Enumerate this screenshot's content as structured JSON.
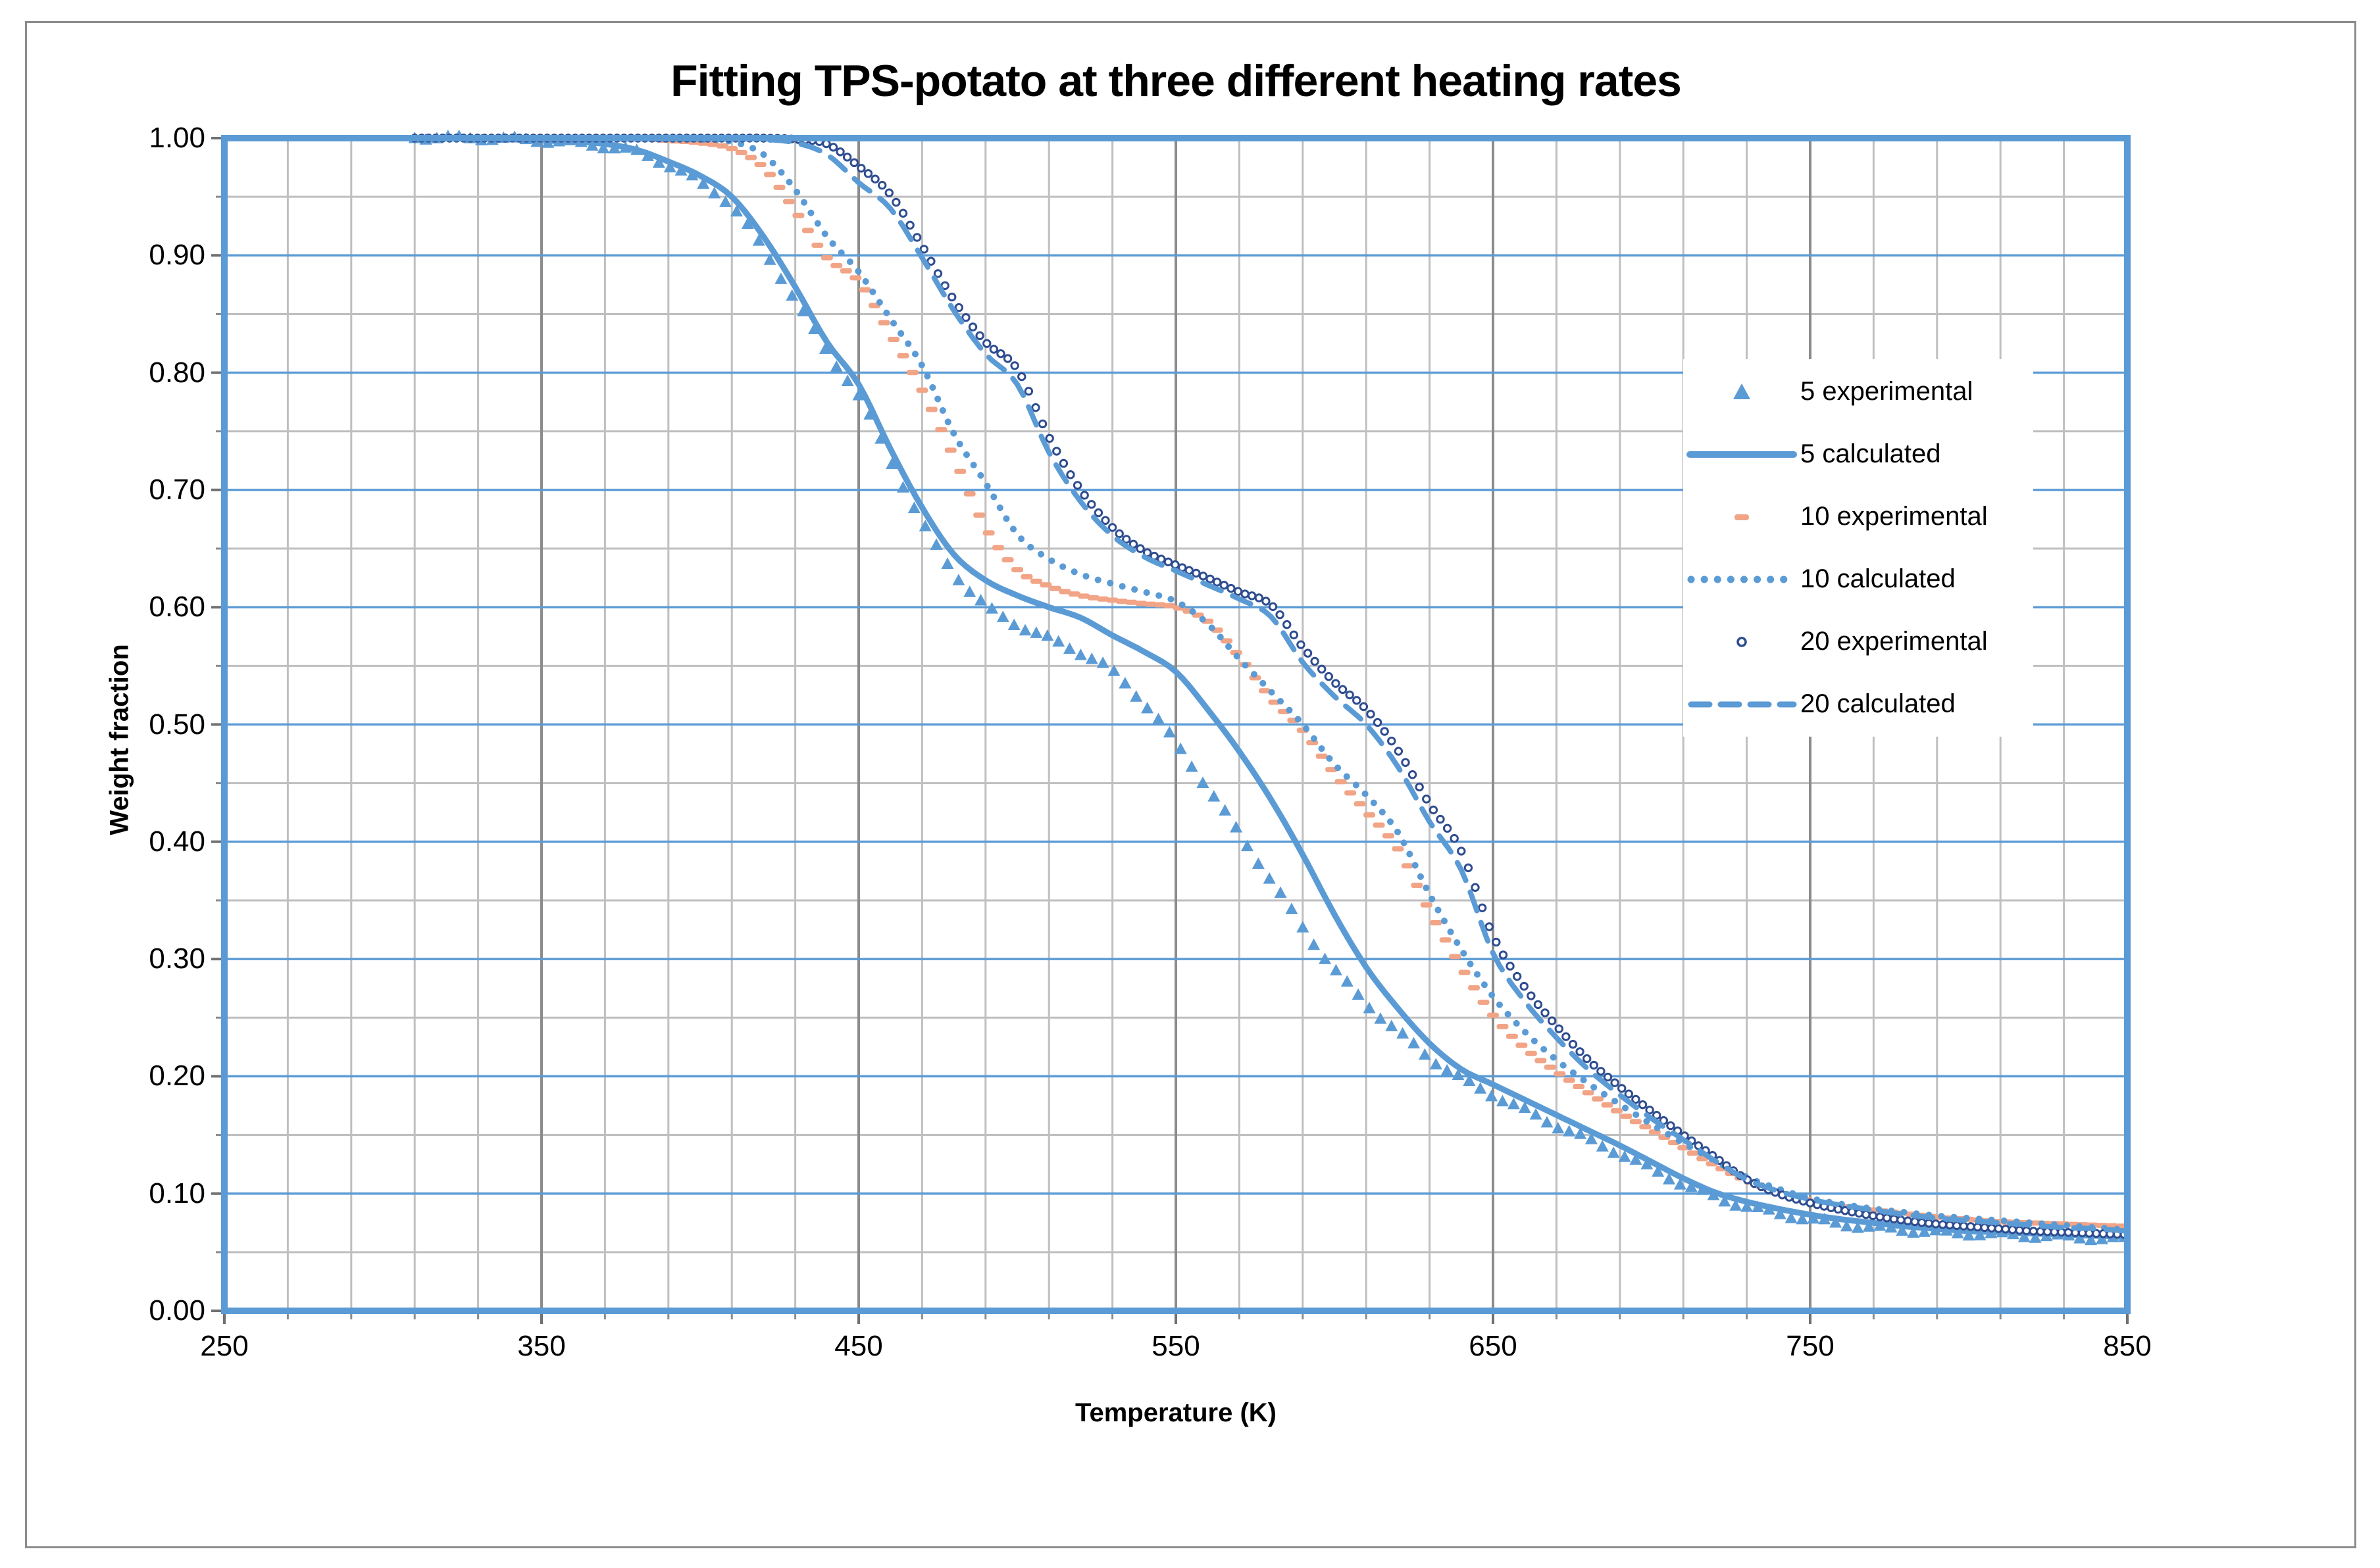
{
  "title": "Fitting TPS-potato at three different heating rates",
  "x_axis": {
    "label": "Temperature (K)",
    "min": 250,
    "max": 850,
    "major_step": 100,
    "minor_step": 20,
    "tick_labels": [
      "250",
      "350",
      "450",
      "550",
      "650",
      "750",
      "850"
    ]
  },
  "y_axis": {
    "label": "Weight fraction",
    "min": 0.0,
    "max": 1.0,
    "major_step": 0.1,
    "minor_step": 0.05,
    "tick_labels": [
      "0.00",
      "0.10",
      "0.20",
      "0.30",
      "0.40",
      "0.50",
      "0.60",
      "0.70",
      "0.80",
      "0.90",
      "1.00"
    ]
  },
  "colors": {
    "series_blue": "#5B9BD5",
    "series_salmon": "#F2A486",
    "series_navy": "#2E4C8F",
    "grid_minor": "#BFBFBF",
    "grid_major_vertical": "#8C8C8C",
    "grid_major_horizontal": "#5B9BD5",
    "plot_frame": "#5B9BD5",
    "tick_mark": "#8C8C8C",
    "figure_border": "#8C8C8C",
    "text": "#000000",
    "legend_background": "#FFFFFF"
  },
  "legend": {
    "position": "inside upper right",
    "entries": [
      {
        "label": "5 experimental",
        "marker": "triangle",
        "color_key": "series_blue"
      },
      {
        "label": "5 calculated",
        "marker": "solid-line",
        "color_key": "series_blue"
      },
      {
        "label": "10 experimental",
        "marker": "short-dash",
        "color_key": "series_salmon"
      },
      {
        "label": "10 calculated",
        "marker": "dotted-line",
        "color_key": "series_blue"
      },
      {
        "label": "20 experimental",
        "marker": "open-circle",
        "color_key": "series_navy"
      },
      {
        "label": "20 calculated",
        "marker": "dashed-line",
        "color_key": "series_blue"
      }
    ]
  },
  "chart_data": {
    "type": "line",
    "title": "Fitting TPS-potato at three different heating rates",
    "xlabel": "Temperature (K)",
    "ylabel": "Weight fraction",
    "xlim": [
      250,
      850
    ],
    "ylim": [
      0.0,
      1.0
    ],
    "grid": {
      "x_major": 100,
      "x_minor": 20,
      "y_major": 0.1,
      "y_minor": 0.05
    },
    "legend_position": "inside upper right",
    "series": [
      {
        "name": "5 experimental",
        "kind": "scatter",
        "marker": "triangle",
        "color_key": "series_blue",
        "t_start": 310,
        "t_step": 10,
        "values": [
          1.001,
          1.0,
          1.0,
          0.999,
          0.998,
          0.996,
          0.993,
          0.988,
          0.977,
          0.962,
          0.942,
          0.905,
          0.862,
          0.818,
          0.78,
          0.726,
          0.672,
          0.63,
          0.601,
          0.585,
          0.573,
          0.561,
          0.545,
          0.518,
          0.484,
          0.446,
          0.407,
          0.367,
          0.327,
          0.291,
          0.262,
          0.238,
          0.216,
          0.198,
          0.184,
          0.171,
          0.158,
          0.146,
          0.134,
          0.121,
          0.108,
          0.097,
          0.089,
          0.083,
          0.078,
          0.074,
          0.071,
          0.069,
          0.067,
          0.066,
          0.065,
          0.064,
          0.063,
          0.062,
          0.061
        ]
      },
      {
        "name": "5 calculated",
        "kind": "line",
        "line_style": "solid",
        "color_key": "series_blue",
        "t_start": 310,
        "t_step": 10,
        "values": [
          1.0,
          1.0,
          1.0,
          0.999,
          0.998,
          0.997,
          0.995,
          0.99,
          0.98,
          0.968,
          0.95,
          0.916,
          0.873,
          0.826,
          0.79,
          0.735,
          0.685,
          0.645,
          0.623,
          0.61,
          0.6,
          0.591,
          0.576,
          0.562,
          0.545,
          0.513,
          0.477,
          0.436,
          0.389,
          0.338,
          0.293,
          0.258,
          0.228,
          0.206,
          0.193,
          0.18,
          0.167,
          0.154,
          0.141,
          0.127,
          0.113,
          0.101,
          0.093,
          0.087,
          0.082,
          0.078,
          0.075,
          0.072,
          0.07,
          0.068,
          0.067,
          0.066,
          0.065,
          0.064,
          0.063
        ]
      },
      {
        "name": "10 experimental",
        "kind": "scatter",
        "marker": "short-dash",
        "color_key": "series_salmon",
        "t_start": 380,
        "t_step": 10,
        "values": [
          1.0,
          0.998,
          0.996,
          0.991,
          0.975,
          0.938,
          0.898,
          0.878,
          0.833,
          0.785,
          0.728,
          0.668,
          0.632,
          0.618,
          0.61,
          0.606,
          0.603,
          0.6,
          0.588,
          0.558,
          0.522,
          0.495,
          0.458,
          0.426,
          0.394,
          0.341,
          0.293,
          0.252,
          0.224,
          0.204,
          0.186,
          0.169,
          0.154,
          0.139,
          0.124,
          0.111,
          0.101,
          0.094,
          0.089,
          0.086,
          0.083,
          0.08,
          0.078,
          0.076,
          0.075,
          0.074,
          0.073,
          0.072
        ]
      },
      {
        "name": "10 calculated",
        "kind": "line",
        "line_style": "dotted",
        "color_key": "series_blue",
        "t_start": 310,
        "t_step": 10,
        "values": [
          1.0,
          1.0,
          1.0,
          1.0,
          1.0,
          1.0,
          1.0,
          1.0,
          1.0,
          0.999,
          0.997,
          0.986,
          0.956,
          0.916,
          0.886,
          0.846,
          0.806,
          0.748,
          0.706,
          0.662,
          0.641,
          0.628,
          0.62,
          0.613,
          0.605,
          0.586,
          0.556,
          0.528,
          0.5,
          0.466,
          0.44,
          0.408,
          0.355,
          0.308,
          0.268,
          0.238,
          0.214,
          0.194,
          0.176,
          0.159,
          0.143,
          0.128,
          0.114,
          0.104,
          0.096,
          0.091,
          0.087,
          0.084,
          0.081,
          0.079,
          0.077,
          0.075,
          0.073,
          0.071,
          0.069
        ]
      },
      {
        "name": "20 experimental",
        "kind": "scatter",
        "marker": "open-circle",
        "color_key": "series_navy",
        "t_start": 310,
        "t_step": 10,
        "values": [
          1.0,
          1.0,
          1.0,
          1.0,
          1.0,
          1.0,
          1.0,
          1.0,
          1.0,
          1.0,
          1.0,
          1.0,
          0.999,
          0.995,
          0.976,
          0.952,
          0.908,
          0.862,
          0.826,
          0.803,
          0.745,
          0.7,
          0.668,
          0.648,
          0.636,
          0.625,
          0.613,
          0.602,
          0.566,
          0.536,
          0.513,
          0.478,
          0.432,
          0.392,
          0.32,
          0.276,
          0.243,
          0.214,
          0.191,
          0.17,
          0.15,
          0.131,
          0.112,
          0.1,
          0.092,
          0.086,
          0.081,
          0.077,
          0.074,
          0.072,
          0.07,
          0.068,
          0.067,
          0.066,
          0.065
        ]
      },
      {
        "name": "20 calculated",
        "kind": "line",
        "line_style": "dashed",
        "color_key": "series_blue",
        "t_start": 310,
        "t_step": 10,
        "values": [
          1.0,
          1.0,
          1.0,
          1.0,
          1.0,
          1.0,
          1.0,
          1.0,
          1.0,
          1.0,
          1.0,
          0.999,
          0.996,
          0.986,
          0.962,
          0.94,
          0.898,
          0.853,
          0.816,
          0.79,
          0.732,
          0.69,
          0.661,
          0.643,
          0.631,
          0.619,
          0.607,
          0.592,
          0.553,
          0.524,
          0.5,
          0.464,
          0.417,
          0.376,
          0.305,
          0.264,
          0.233,
          0.206,
          0.184,
          0.164,
          0.146,
          0.128,
          0.112,
          0.102,
          0.095,
          0.09,
          0.086,
          0.082,
          0.079,
          0.077,
          0.075,
          0.073,
          0.071,
          0.07,
          0.068
        ]
      }
    ]
  }
}
